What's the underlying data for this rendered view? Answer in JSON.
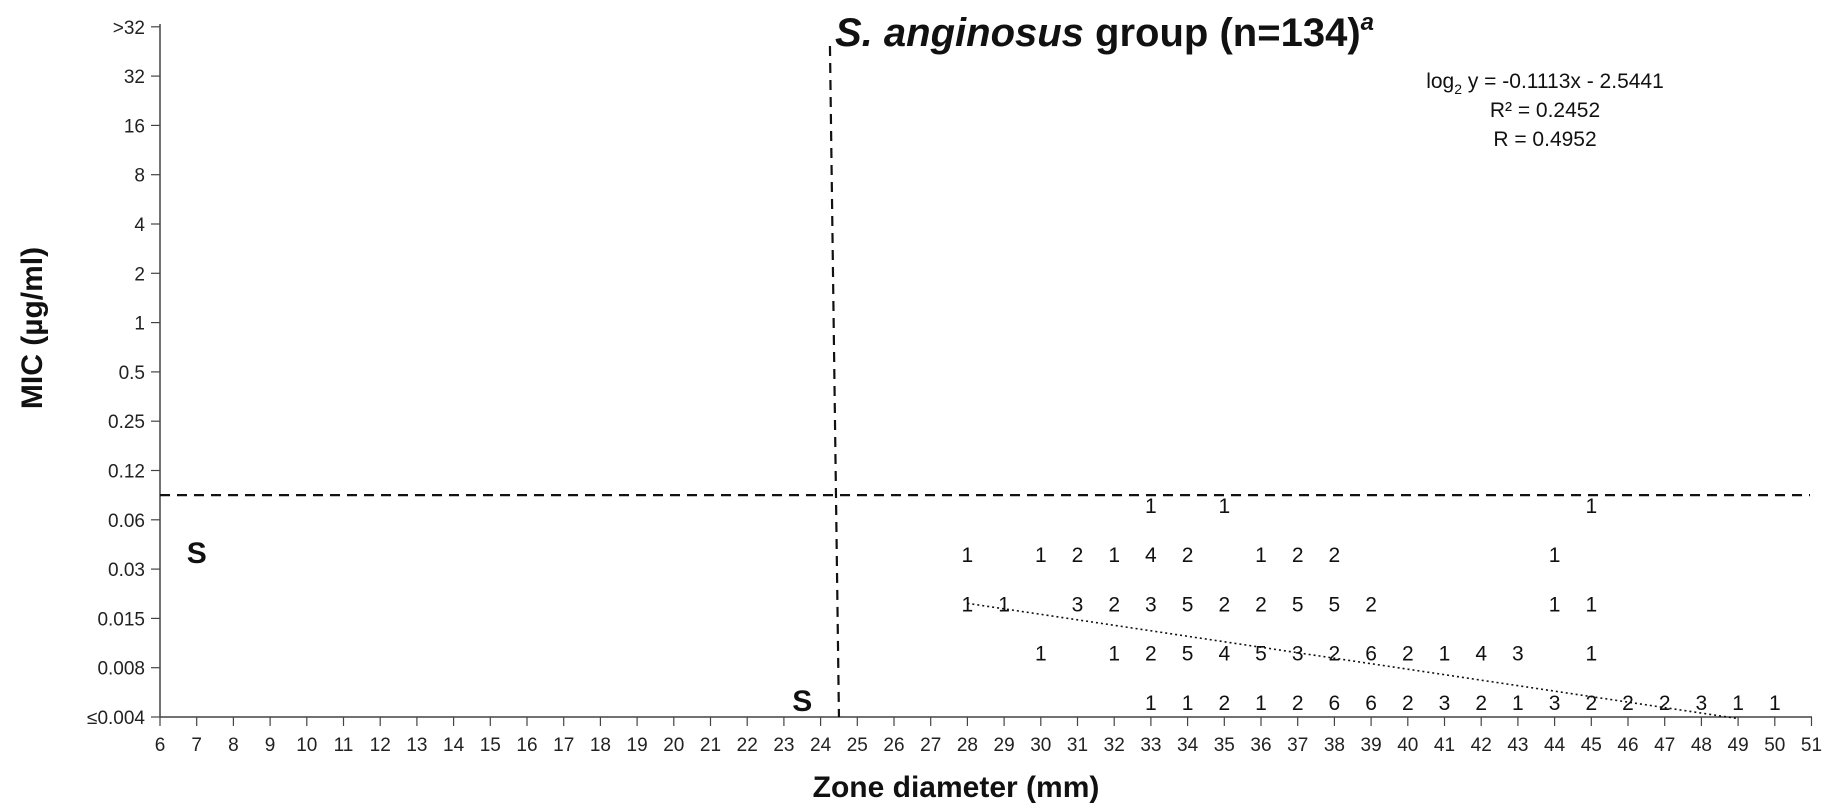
{
  "chart_data": {
    "type": "scatter",
    "title": {
      "italic": "S. anginosus",
      "rest": " group (n=134)",
      "superscript": "a"
    },
    "xlabel": "Zone diameter (mm)",
    "ylabel": "MIC (µg/ml)",
    "x_ticks": [
      "6",
      "7",
      "8",
      "9",
      "10",
      "11",
      "12",
      "13",
      "14",
      "15",
      "16",
      "17",
      "18",
      "19",
      "20",
      "21",
      "22",
      "23",
      "24",
      "25",
      "26",
      "27",
      "28",
      "29",
      "30",
      "31",
      "32",
      "33",
      "34",
      "35",
      "36",
      "37",
      "38",
      "39",
      "40",
      "41",
      "42",
      "43",
      "44",
      "45",
      "46",
      "47",
      "48",
      "49",
      "50",
      "51"
    ],
    "xlim": [
      6,
      51
    ],
    "y_ticks": [
      "≤0.004",
      "0.008",
      "0.015",
      "0.03",
      "0.06",
      "0.12",
      "0.25",
      "0.5",
      "1",
      "2",
      "4",
      "8",
      "16",
      "32",
      ">32"
    ],
    "y_scale": "log2 categories",
    "regression": {
      "equation_prefix": "log",
      "equation_subscript": "2",
      "equation_rest": " y = -0.1113x - 2.5441",
      "r_squared": "R² = 0.2452",
      "r": "R = 0.4952",
      "slope": -0.1113,
      "intercept": -2.5441,
      "x_range": [
        28,
        49
      ],
      "style": "dotted"
    },
    "breakpoints": {
      "zone_diameter_mm": 24.5,
      "mic_between": [
        "0.06",
        "0.12"
      ],
      "style": "dashed"
    },
    "region_labels": [
      {
        "text": "S",
        "x": 7,
        "y": "0.03"
      },
      {
        "text": "S",
        "x": 23.5,
        "y": "≤0.004"
      }
    ],
    "points": [
      {
        "y": "0.06",
        "x": 33,
        "n": 1
      },
      {
        "y": "0.06",
        "x": 35,
        "n": 1
      },
      {
        "y": "0.06",
        "x": 45,
        "n": 1
      },
      {
        "y": "0.03",
        "x": 28,
        "n": 1
      },
      {
        "y": "0.03",
        "x": 30,
        "n": 1
      },
      {
        "y": "0.03",
        "x": 31,
        "n": 2
      },
      {
        "y": "0.03",
        "x": 32,
        "n": 1
      },
      {
        "y": "0.03",
        "x": 33,
        "n": 4
      },
      {
        "y": "0.03",
        "x": 34,
        "n": 2
      },
      {
        "y": "0.03",
        "x": 36,
        "n": 1
      },
      {
        "y": "0.03",
        "x": 37,
        "n": 2
      },
      {
        "y": "0.03",
        "x": 38,
        "n": 2
      },
      {
        "y": "0.03",
        "x": 44,
        "n": 1
      },
      {
        "y": "0.015",
        "x": 28,
        "n": 1
      },
      {
        "y": "0.015",
        "x": 29,
        "n": 1
      },
      {
        "y": "0.015",
        "x": 31,
        "n": 3
      },
      {
        "y": "0.015",
        "x": 32,
        "n": 2
      },
      {
        "y": "0.015",
        "x": 33,
        "n": 3
      },
      {
        "y": "0.015",
        "x": 34,
        "n": 5
      },
      {
        "y": "0.015",
        "x": 35,
        "n": 2
      },
      {
        "y": "0.015",
        "x": 36,
        "n": 2
      },
      {
        "y": "0.015",
        "x": 37,
        "n": 5
      },
      {
        "y": "0.015",
        "x": 38,
        "n": 5
      },
      {
        "y": "0.015",
        "x": 39,
        "n": 2
      },
      {
        "y": "0.015",
        "x": 44,
        "n": 1
      },
      {
        "y": "0.015",
        "x": 45,
        "n": 1
      },
      {
        "y": "0.008",
        "x": 30,
        "n": 1
      },
      {
        "y": "0.008",
        "x": 32,
        "n": 1
      },
      {
        "y": "0.008",
        "x": 33,
        "n": 2
      },
      {
        "y": "0.008",
        "x": 34,
        "n": 5
      },
      {
        "y": "0.008",
        "x": 35,
        "n": 4
      },
      {
        "y": "0.008",
        "x": 36,
        "n": 5
      },
      {
        "y": "0.008",
        "x": 37,
        "n": 3
      },
      {
        "y": "0.008",
        "x": 38,
        "n": 2
      },
      {
        "y": "0.008",
        "x": 39,
        "n": 6
      },
      {
        "y": "0.008",
        "x": 40,
        "n": 2
      },
      {
        "y": "0.008",
        "x": 41,
        "n": 1
      },
      {
        "y": "0.008",
        "x": 42,
        "n": 4
      },
      {
        "y": "0.008",
        "x": 43,
        "n": 3
      },
      {
        "y": "0.008",
        "x": 45,
        "n": 1
      },
      {
        "y": "≤0.004",
        "x": 33,
        "n": 1
      },
      {
        "y": "≤0.004",
        "x": 34,
        "n": 1
      },
      {
        "y": "≤0.004",
        "x": 35,
        "n": 2
      },
      {
        "y": "≤0.004",
        "x": 36,
        "n": 1
      },
      {
        "y": "≤0.004",
        "x": 37,
        "n": 2
      },
      {
        "y": "≤0.004",
        "x": 38,
        "n": 6
      },
      {
        "y": "≤0.004",
        "x": 39,
        "n": 6
      },
      {
        "y": "≤0.004",
        "x": 40,
        "n": 2
      },
      {
        "y": "≤0.004",
        "x": 41,
        "n": 3
      },
      {
        "y": "≤0.004",
        "x": 42,
        "n": 2
      },
      {
        "y": "≤0.004",
        "x": 43,
        "n": 1
      },
      {
        "y": "≤0.004",
        "x": 44,
        "n": 3
      },
      {
        "y": "≤0.004",
        "x": 45,
        "n": 2
      },
      {
        "y": "≤0.004",
        "x": 46,
        "n": 2
      },
      {
        "y": "≤0.004",
        "x": 47,
        "n": 2
      },
      {
        "y": "≤0.004",
        "x": 48,
        "n": 3
      },
      {
        "y": "≤0.004",
        "x": 49,
        "n": 1
      },
      {
        "y": "≤0.004",
        "x": 50,
        "n": 1
      }
    ]
  }
}
